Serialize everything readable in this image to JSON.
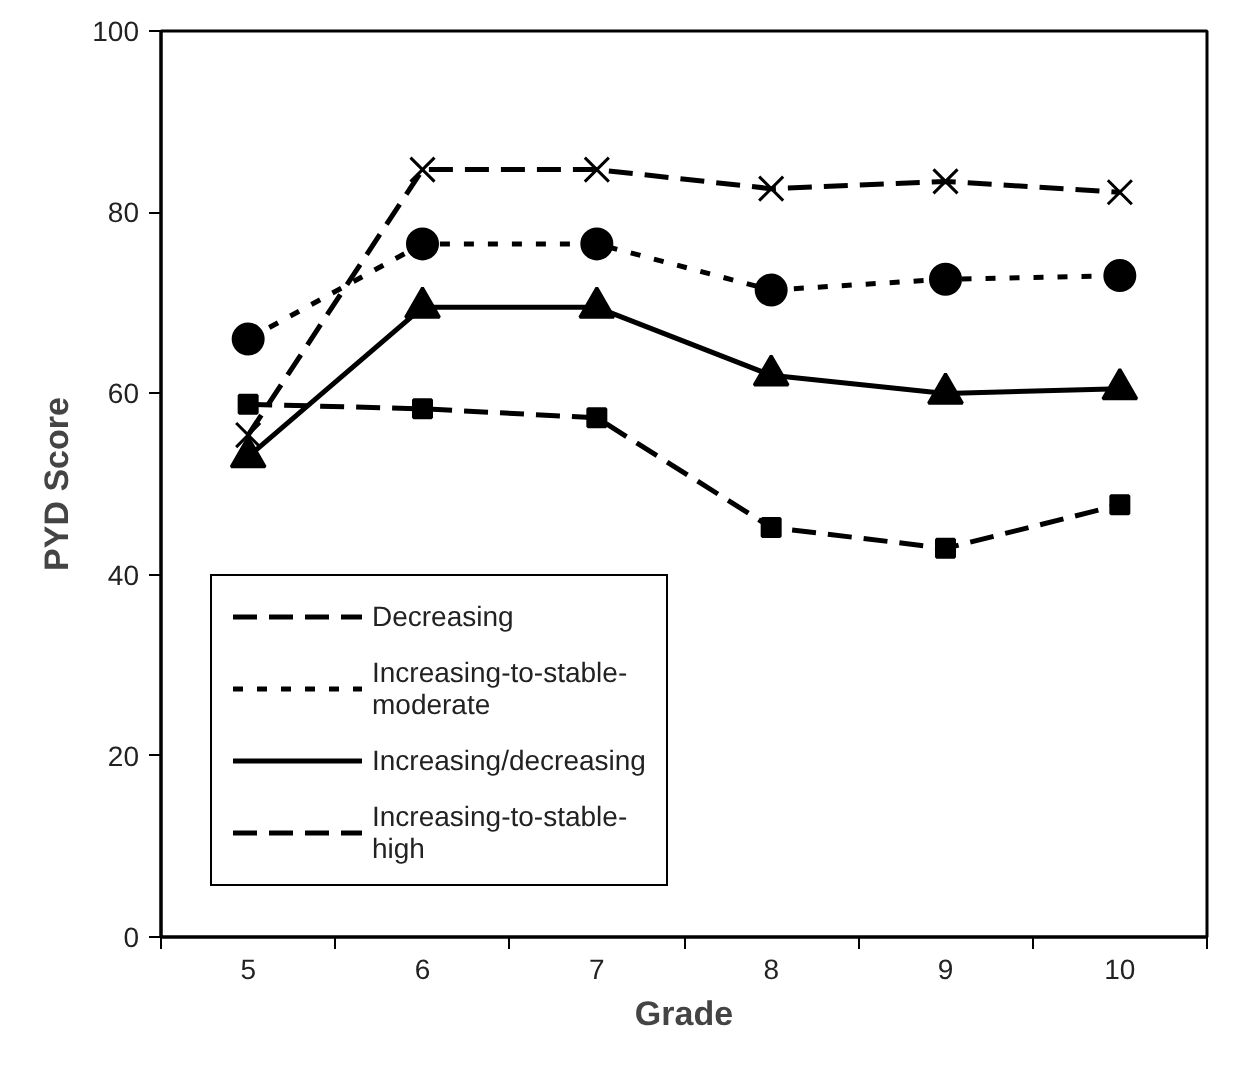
{
  "chart_data": {
    "type": "line",
    "xlabel": "Grade",
    "ylabel": "PYD Score",
    "categories": [
      "5",
      "6",
      "7",
      "8",
      "9",
      "10"
    ],
    "ylim": [
      0,
      100
    ],
    "yticks": [
      0,
      20,
      40,
      60,
      80,
      100
    ],
    "grid": false,
    "legend": "bottom left",
    "series": [
      {
        "name": "Decreasing",
        "color": "#000000",
        "marker": "square",
        "line_style": "dashed",
        "values": [
          58.8,
          58.3,
          57.3,
          45.2,
          42.9,
          47.7
        ]
      },
      {
        "name": "Increasing-to-stable-moderate",
        "color": "#000000",
        "marker": "circle",
        "line_style": "dotted",
        "values": [
          66,
          76.5,
          76.5,
          71.4,
          72.6,
          73
        ]
      },
      {
        "name": "Increasing/decreasing",
        "color": "#000000",
        "marker": "triangle",
        "line_style": "solid",
        "values": [
          53,
          69.5,
          69.5,
          62,
          60,
          60.5
        ]
      },
      {
        "name": "Increasing-to-stable-high",
        "color": "#000000",
        "marker": "cross",
        "line_style": "dashed",
        "values": [
          55.4,
          84.7,
          84.7,
          82.6,
          83.4,
          82.2
        ]
      }
    ]
  }
}
